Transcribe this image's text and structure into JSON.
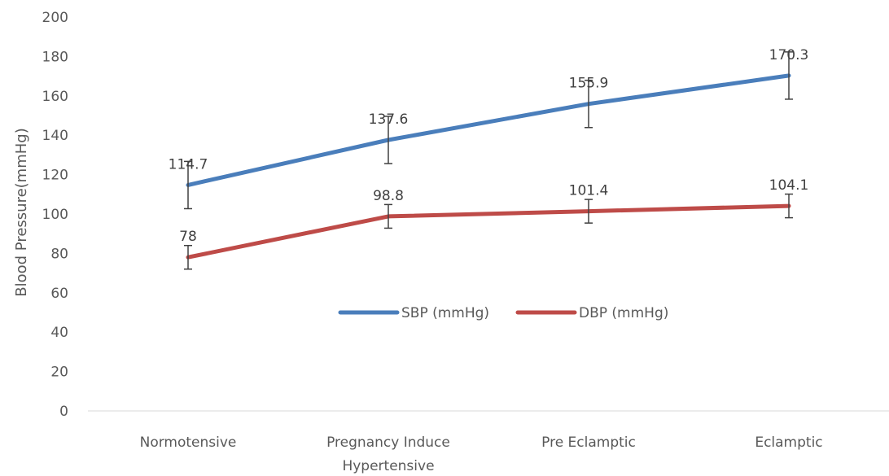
{
  "chart_data": {
    "type": "line",
    "title": "",
    "xlabel": "",
    "ylabel": "Blood Pressure(mmHg)",
    "ylim": [
      0,
      200
    ],
    "yticks": [
      0,
      20,
      40,
      60,
      80,
      100,
      120,
      140,
      160,
      180,
      200
    ],
    "categories": [
      [
        "Normotensive"
      ],
      [
        "Pregnancy Induce",
        "Hypertensive"
      ],
      [
        "Pre Eclamptic"
      ],
      [
        "Eclamptic"
      ]
    ],
    "series": [
      {
        "name": "SBP (mmHg)",
        "color": "#4a7ebb",
        "values": [
          114.7,
          137.6,
          155.9,
          170.3
        ],
        "labels": [
          "114.7",
          "137.6",
          "155.9",
          "170.3"
        ],
        "error": [
          12,
          12,
          12,
          12
        ]
      },
      {
        "name": "DBP (mmHg)",
        "color": "#be4b48",
        "values": [
          78,
          98.8,
          101.4,
          104.1
        ],
        "labels": [
          "78",
          "98.8",
          "101.4",
          "104.1"
        ],
        "error": [
          6,
          6,
          6,
          6
        ]
      }
    ],
    "legend_position": "center",
    "grid": false
  }
}
